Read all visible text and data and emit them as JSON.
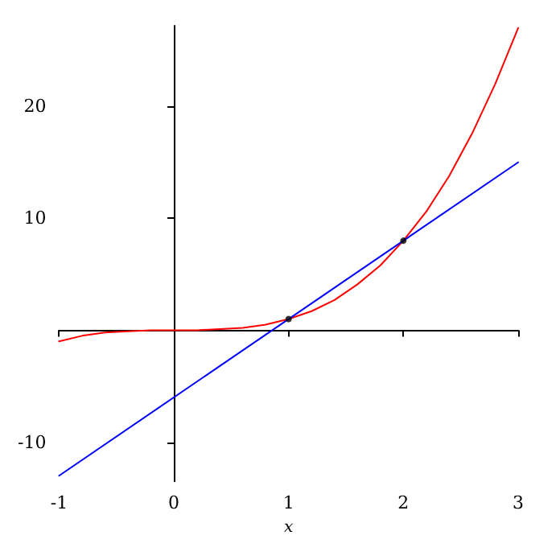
{
  "chart_data": {
    "type": "line",
    "xlabel": "x",
    "xlim": [
      -1,
      3
    ],
    "ylim": [
      -13.5,
      27.2
    ],
    "xticks": [
      -1,
      0,
      1,
      2,
      3
    ],
    "yticks": [
      -10,
      10,
      20
    ],
    "series": [
      {
        "color": "#ff0000",
        "marker": "none",
        "x": [
          -1,
          -0.8,
          -0.6,
          -0.4,
          -0.2,
          0,
          0.2,
          0.4,
          0.6,
          0.8,
          1,
          1.2,
          1.4,
          1.6,
          1.8,
          2,
          2.2,
          2.4,
          2.6,
          2.8,
          3
        ],
        "values": [
          -1,
          -0.5,
          -0.2,
          -0.1,
          0,
          0,
          0,
          0.1,
          0.2,
          0.5,
          1,
          1.7,
          2.7,
          4.1,
          5.8,
          8,
          10.6,
          13.8,
          17.6,
          22,
          27
        ]
      },
      {
        "color": "#0000ff",
        "marker": "none",
        "x": [
          -1,
          3
        ],
        "values": [
          -13,
          15
        ]
      },
      {
        "type": "scatter",
        "color": "#000000",
        "marker": "circle",
        "x": [
          1,
          2
        ],
        "values": [
          1,
          8
        ]
      }
    ]
  }
}
